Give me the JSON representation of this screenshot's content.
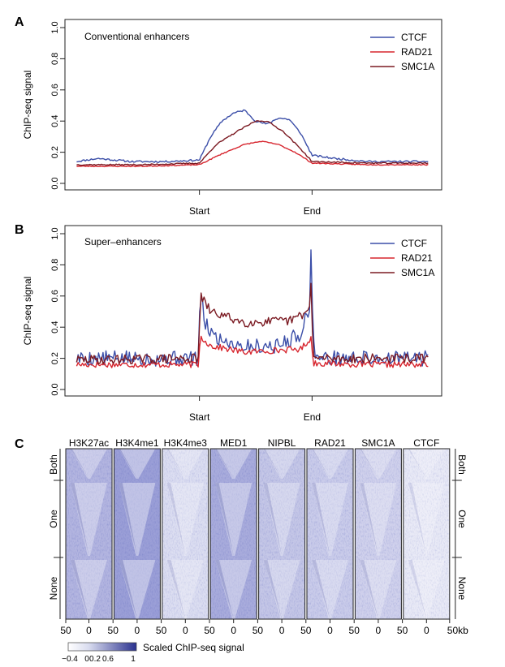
{
  "chart_data": [
    {
      "panel": "A",
      "type": "line",
      "title": "Conventional enhancers",
      "xlabel": "",
      "ylabel": "ChIP-seq signal",
      "ylim": [
        0,
        1
      ],
      "yticks": [
        "0.0",
        "0.2",
        "0.4",
        "0.6",
        "0.8",
        "1.0"
      ],
      "xticks": [
        {
          "label": "Start",
          "x": 0
        },
        {
          "label": "End",
          "x": 1
        }
      ],
      "xlim": [
        -1.1,
        2.1
      ],
      "grid": false,
      "legend": "top-right",
      "series": [
        {
          "name": "CTCF",
          "color": "#3b4ea8",
          "seed": 11,
          "noise": 0.006,
          "x": [
            -1.1,
            -0.9,
            -0.6,
            -0.3,
            0,
            0.1,
            0.2,
            0.3,
            0.4,
            0.5,
            0.6,
            0.7,
            0.8,
            0.9,
            1,
            1.2,
            1.5,
            1.8,
            2.05
          ],
          "y": [
            0.14,
            0.16,
            0.14,
            0.14,
            0.15,
            0.3,
            0.4,
            0.45,
            0.47,
            0.4,
            0.38,
            0.42,
            0.41,
            0.32,
            0.18,
            0.16,
            0.14,
            0.14,
            0.14
          ]
        },
        {
          "name": "RAD21",
          "color": "#d7262f",
          "seed": 23,
          "noise": 0.003,
          "x": [
            -1.1,
            -0.5,
            0,
            0.2,
            0.4,
            0.55,
            0.7,
            0.85,
            1,
            1.5,
            2.05
          ],
          "y": [
            0.11,
            0.11,
            0.12,
            0.19,
            0.25,
            0.27,
            0.25,
            0.2,
            0.13,
            0.12,
            0.12
          ]
        },
        {
          "name": "SMC1A",
          "color": "#7b1a22",
          "seed": 37,
          "noise": 0.004,
          "x": [
            -1.1,
            -0.5,
            0,
            0.15,
            0.35,
            0.5,
            0.6,
            0.75,
            0.9,
            1,
            1.5,
            2.05
          ],
          "y": [
            0.12,
            0.12,
            0.13,
            0.25,
            0.34,
            0.4,
            0.4,
            0.33,
            0.22,
            0.14,
            0.13,
            0.13
          ]
        }
      ]
    },
    {
      "panel": "B",
      "type": "line",
      "title": "Super–enhancers",
      "xlabel": "",
      "ylabel": "ChIP-seq signal",
      "ylim": [
        0,
        1
      ],
      "yticks": [
        "0.0",
        "0.2",
        "0.4",
        "0.6",
        "0.8",
        "1.0"
      ],
      "xticks": [
        {
          "label": "Start",
          "x": 0
        },
        {
          "label": "End",
          "x": 1
        }
      ],
      "xlim": [
        -1.1,
        2.1
      ],
      "grid": false,
      "legend": "top-right",
      "series": [
        {
          "name": "CTCF",
          "color": "#3b4ea8",
          "seed": 5,
          "noise": 0.05,
          "x": [
            -1.1,
            -0.2,
            -0.01,
            0.01,
            0.05,
            0.15,
            0.4,
            0.7,
            0.9,
            0.98,
            0.99,
            1.0,
            1.02,
            1.05,
            1.5,
            2.05
          ],
          "y": [
            0.2,
            0.2,
            0.2,
            0.62,
            0.42,
            0.33,
            0.28,
            0.28,
            0.36,
            0.55,
            0.85,
            0.55,
            0.26,
            0.2,
            0.2,
            0.2
          ]
        },
        {
          "name": "RAD21",
          "color": "#d7262f",
          "seed": 17,
          "noise": 0.02,
          "x": [
            -1.1,
            -0.01,
            0.01,
            0.1,
            0.4,
            0.9,
            0.99,
            1.01,
            1.5,
            2.05
          ],
          "y": [
            0.16,
            0.16,
            0.34,
            0.28,
            0.24,
            0.26,
            0.33,
            0.17,
            0.16,
            0.16
          ]
        },
        {
          "name": "SMC1A",
          "color": "#7b1a22",
          "seed": 29,
          "noise": 0.03,
          "x": [
            -1.1,
            -0.01,
            0.01,
            0.1,
            0.4,
            0.8,
            0.97,
            0.99,
            1.01,
            1.5,
            2.05
          ],
          "y": [
            0.19,
            0.2,
            0.6,
            0.5,
            0.43,
            0.44,
            0.5,
            0.68,
            0.2,
            0.2,
            0.2
          ]
        }
      ]
    },
    {
      "panel": "C",
      "type": "heatmap",
      "columns": [
        {
          "name": "H3K27ac",
          "intensity": 0.55
        },
        {
          "name": "H3K4me1",
          "intensity": 0.72
        },
        {
          "name": "H3K4me3",
          "intensity": 0.25
        },
        {
          "name": "MED1",
          "intensity": 0.62
        },
        {
          "name": "NIPBL",
          "intensity": 0.42
        },
        {
          "name": "RAD21",
          "intensity": 0.38
        },
        {
          "name": "SMC1A",
          "intensity": 0.34
        },
        {
          "name": "CTCF",
          "intensity": 0.16
        }
      ],
      "row_groups": [
        "Both",
        "One",
        "None"
      ],
      "xticks": [
        "50",
        "0",
        "50",
        "0",
        "50",
        "0",
        "50",
        "0",
        "50",
        "0",
        "50",
        "0",
        "50",
        "0",
        "50",
        "0",
        "50kb"
      ],
      "colorbar": {
        "label": "Scaled ChIP-seq signal",
        "ticks": [
          "−0.4",
          "0",
          "0.2",
          "0.6",
          "1"
        ],
        "low_color": "#ffffff",
        "high_color": "#2a318f"
      }
    }
  ],
  "panel_labels": [
    "A",
    "B",
    "C"
  ]
}
